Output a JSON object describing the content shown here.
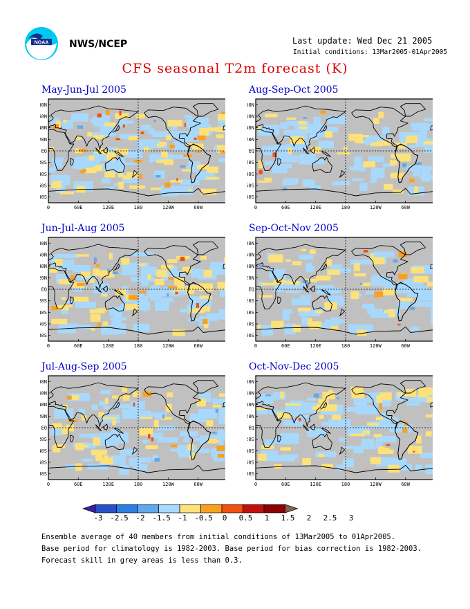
{
  "header": {
    "agency": "NWS/NCEP",
    "last_update": "Last update: Wed Dec 21 2005",
    "initial_conditions": "Initial conditions: 13Mar2005-01Apr2005"
  },
  "title": "CFS seasonal T2m forecast (K)",
  "colors": {
    "land": "#c0c0c0",
    "ocean_blank": "#ffffff",
    "bins": [
      "#3a1fa8",
      "#2850c8",
      "#2b7fe0",
      "#60a8f0",
      "#a8d8fc",
      "#fde17a",
      "#f9a020",
      "#f05010",
      "#c01010",
      "#8b0000",
      "#8a6050"
    ]
  },
  "maps": {
    "lat_labels": [
      "80N",
      "60N",
      "40N",
      "20N",
      "EQ",
      "20S",
      "40S",
      "60S",
      "80S"
    ],
    "lon_labels": [
      "0",
      "60E",
      "120E",
      "180",
      "120W",
      "60W",
      "0"
    ],
    "panels": [
      {
        "title": "May-Jun-Jul 2005"
      },
      {
        "title": "Aug-Sep-Oct 2005"
      },
      {
        "title": "Jun-Jul-Aug 2005"
      },
      {
        "title": "Sep-Oct-Nov 2005"
      },
      {
        "title": "Jul-Aug-Sep 2005"
      },
      {
        "title": "Oct-Nov-Dec 2005"
      }
    ]
  },
  "colorbar": {
    "labels": [
      "-3",
      "-2.5",
      "-2",
      "-1.5",
      "-1",
      "-0.5",
      "0",
      "0.5",
      "1",
      "1.5",
      "2",
      "2.5",
      "3"
    ]
  },
  "footer": {
    "line1": "Ensemble average of 40 members from initial conditions of 13Mar2005 to 01Apr2005.",
    "line2": "Base period for climatology is 1982-2003. Base period for bias correction is 1982-2003.",
    "line3": "Forecast skill in grey areas is less than 0.3."
  }
}
